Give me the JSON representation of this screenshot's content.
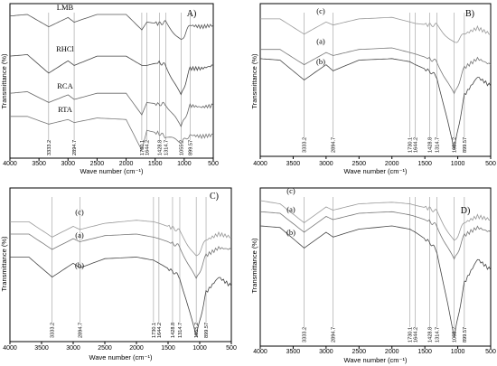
{
  "chart_data": [
    {
      "type": "line",
      "panel_label": "A)",
      "xlabel": "Wave number (cm⁻¹)",
      "ylabel": "Transmittance (%)",
      "xlim": [
        4000,
        500
      ],
      "x_ticks": [
        "4000",
        "3500",
        "3000",
        "2500",
        "2000",
        "1500",
        "1000",
        "500"
      ],
      "peak_labels": [
        "3333.2",
        "2894.7",
        "1730.1",
        "1644.2",
        "1428.8",
        "1314.7",
        "1055.2",
        "899.57"
      ],
      "series": [
        {
          "name": "LMB",
          "color": "#555555",
          "values": [
            [
              4000,
              0.92
            ],
            [
              3700,
              0.93
            ],
            [
              3333,
              0.85
            ],
            [
              3000,
              0.91
            ],
            [
              2894,
              0.88
            ],
            [
              2500,
              0.93
            ],
            [
              2000,
              0.93
            ],
            [
              1730,
              0.83
            ],
            [
              1644,
              0.88
            ],
            [
              1430,
              0.87
            ],
            [
              1315,
              0.88
            ],
            [
              1055,
              0.76
            ],
            [
              900,
              0.86
            ],
            [
              700,
              0.85
            ],
            [
              500,
              0.86
            ]
          ]
        },
        {
          "name": "RHCl",
          "color": "#444444",
          "values": [
            [
              4000,
              0.66
            ],
            [
              3700,
              0.67
            ],
            [
              3333,
              0.55
            ],
            [
              3000,
              0.63
            ],
            [
              2894,
              0.6
            ],
            [
              2500,
              0.66
            ],
            [
              2000,
              0.66
            ],
            [
              1730,
              0.6
            ],
            [
              1644,
              0.6
            ],
            [
              1430,
              0.62
            ],
            [
              1315,
              0.6
            ],
            [
              1055,
              0.4
            ],
            [
              900,
              0.58
            ],
            [
              700,
              0.58
            ],
            [
              500,
              0.6
            ]
          ]
        },
        {
          "name": "RCA",
          "color": "#666666",
          "values": [
            [
              4000,
              0.42
            ],
            [
              3700,
              0.43
            ],
            [
              3333,
              0.36
            ],
            [
              3000,
              0.41
            ],
            [
              2894,
              0.38
            ],
            [
              2500,
              0.42
            ],
            [
              2000,
              0.42
            ],
            [
              1730,
              0.28
            ],
            [
              1644,
              0.36
            ],
            [
              1430,
              0.35
            ],
            [
              1315,
              0.35
            ],
            [
              1055,
              0.2
            ],
            [
              900,
              0.34
            ],
            [
              700,
              0.33
            ],
            [
              500,
              0.34
            ]
          ]
        },
        {
          "name": "RTA",
          "color": "#777777",
          "values": [
            [
              4000,
              0.27
            ],
            [
              3700,
              0.27
            ],
            [
              3333,
              0.22
            ],
            [
              3000,
              0.25
            ],
            [
              2894,
              0.23
            ],
            [
              2500,
              0.26
            ],
            [
              2000,
              0.25
            ],
            [
              1730,
              0.05
            ],
            [
              1644,
              0.18
            ],
            [
              1430,
              0.16
            ],
            [
              1315,
              0.14
            ],
            [
              1055,
              0.1
            ],
            [
              900,
              0.15
            ],
            [
              700,
              0.14
            ],
            [
              500,
              0.15
            ]
          ]
        }
      ]
    },
    {
      "type": "line",
      "panel_label": "B)",
      "xlabel": "Wave number (cm⁻¹)",
      "ylabel": "Transmittance (%)",
      "xlim": [
        4000,
        500
      ],
      "x_ticks": [
        "4000",
        "3500",
        "3000",
        "2500",
        "2000",
        "1500",
        "1000",
        "500"
      ],
      "peak_labels": [
        "3333.2",
        "2894.7",
        "1730.1",
        "1644.2",
        "1428.8",
        "1314.7",
        "1055.2",
        "899.57"
      ],
      "series": [
        {
          "name": "(c)",
          "color": "#999999",
          "values": [
            [
              4000,
              0.9
            ],
            [
              3700,
              0.9
            ],
            [
              3333,
              0.8
            ],
            [
              3000,
              0.88
            ],
            [
              2894,
              0.86
            ],
            [
              2500,
              0.9
            ],
            [
              2000,
              0.91
            ],
            [
              1730,
              0.88
            ],
            [
              1644,
              0.87
            ],
            [
              1430,
              0.86
            ],
            [
              1315,
              0.86
            ],
            [
              1055,
              0.74
            ],
            [
              900,
              0.8
            ],
            [
              700,
              0.84
            ],
            [
              500,
              0.8
            ]
          ]
        },
        {
          "name": "(a)",
          "color": "#777777",
          "values": [
            [
              4000,
              0.7
            ],
            [
              3700,
              0.7
            ],
            [
              3333,
              0.6
            ],
            [
              3000,
              0.68
            ],
            [
              2894,
              0.66
            ],
            [
              2500,
              0.7
            ],
            [
              2000,
              0.71
            ],
            [
              1730,
              0.68
            ],
            [
              1644,
              0.67
            ],
            [
              1430,
              0.64
            ],
            [
              1315,
              0.62
            ],
            [
              1055,
              0.4
            ],
            [
              900,
              0.58
            ],
            [
              700,
              0.64
            ],
            [
              500,
              0.6
            ]
          ]
        },
        {
          "name": "(b)",
          "color": "#444444",
          "values": [
            [
              4000,
              0.64
            ],
            [
              3700,
              0.63
            ],
            [
              3333,
              0.5
            ],
            [
              3000,
              0.6
            ],
            [
              2894,
              0.56
            ],
            [
              2500,
              0.63
            ],
            [
              2000,
              0.64
            ],
            [
              1730,
              0.62
            ],
            [
              1644,
              0.6
            ],
            [
              1430,
              0.56
            ],
            [
              1315,
              0.52
            ],
            [
              1055,
              0.04
            ],
            [
              900,
              0.4
            ],
            [
              700,
              0.52
            ],
            [
              500,
              0.46
            ]
          ]
        }
      ]
    },
    {
      "type": "line",
      "panel_label": "C)",
      "xlabel": "Wave number (cm⁻¹)",
      "ylabel": "Transmittance (%)",
      "xlim": [
        4000,
        500
      ],
      "x_ticks": [
        "4000",
        "3500",
        "3000",
        "2500",
        "2000",
        "1500",
        "1000",
        "500"
      ],
      "peak_labels": [
        "3333.2",
        "2894.7",
        "1730.1",
        "1644.2",
        "1428.8",
        "1314.7",
        "1055.2",
        "899.57"
      ],
      "series": [
        {
          "name": "(c)",
          "color": "#999999",
          "values": [
            [
              4000,
              0.78
            ],
            [
              3700,
              0.78
            ],
            [
              3333,
              0.68
            ],
            [
              3000,
              0.75
            ],
            [
              2894,
              0.73
            ],
            [
              2500,
              0.77
            ],
            [
              2000,
              0.79
            ],
            [
              1730,
              0.78
            ],
            [
              1644,
              0.77
            ],
            [
              1430,
              0.74
            ],
            [
              1315,
              0.72
            ],
            [
              1055,
              0.55
            ],
            [
              900,
              0.66
            ],
            [
              700,
              0.7
            ],
            [
              500,
              0.68
            ]
          ]
        },
        {
          "name": "(a)",
          "color": "#777777",
          "values": [
            [
              4000,
              0.7
            ],
            [
              3700,
              0.7
            ],
            [
              3333,
              0.6
            ],
            [
              3000,
              0.67
            ],
            [
              2894,
              0.65
            ],
            [
              2500,
              0.69
            ],
            [
              2000,
              0.7
            ],
            [
              1730,
              0.68
            ],
            [
              1644,
              0.67
            ],
            [
              1430,
              0.64
            ],
            [
              1315,
              0.62
            ],
            [
              1055,
              0.4
            ],
            [
              900,
              0.56
            ],
            [
              700,
              0.61
            ],
            [
              500,
              0.6
            ]
          ]
        },
        {
          "name": "(b)",
          "color": "#444444",
          "values": [
            [
              4000,
              0.55
            ],
            [
              3700,
              0.55
            ],
            [
              3333,
              0.42
            ],
            [
              3000,
              0.51
            ],
            [
              2894,
              0.48
            ],
            [
              2500,
              0.54
            ],
            [
              2000,
              0.55
            ],
            [
              1730,
              0.53
            ],
            [
              1644,
              0.51
            ],
            [
              1430,
              0.46
            ],
            [
              1315,
              0.42
            ],
            [
              1055,
              0.03
            ],
            [
              900,
              0.32
            ],
            [
              700,
              0.42
            ],
            [
              500,
              0.36
            ]
          ]
        }
      ]
    },
    {
      "type": "line",
      "panel_label": "D)",
      "xlabel": "Wave number (cm⁻¹)",
      "ylabel": "Transmittance (%)",
      "xlim": [
        4000,
        500
      ],
      "x_ticks": [
        "4000",
        "3500",
        "3000",
        "2500",
        "2000",
        "1500",
        "1000",
        "500"
      ],
      "peak_labels": [
        "3333.2",
        "2894.7",
        "1730.1",
        "1644.2",
        "1428.8",
        "1314.7",
        "1055.2",
        "899.57"
      ],
      "series": [
        {
          "name": "(c)",
          "color": "#999999",
          "values": [
            [
              4000,
              0.92
            ],
            [
              3700,
              0.9
            ],
            [
              3333,
              0.78
            ],
            [
              3000,
              0.88
            ],
            [
              2894,
              0.86
            ],
            [
              2500,
              0.9
            ],
            [
              2000,
              0.91
            ],
            [
              1730,
              0.9
            ],
            [
              1644,
              0.89
            ],
            [
              1430,
              0.87
            ],
            [
              1315,
              0.85
            ],
            [
              1055,
              0.66
            ],
            [
              900,
              0.78
            ],
            [
              700,
              0.82
            ],
            [
              500,
              0.8
            ]
          ]
        },
        {
          "name": "(a)",
          "color": "#777777",
          "values": [
            [
              4000,
              0.85
            ],
            [
              3700,
              0.84
            ],
            [
              3333,
              0.72
            ],
            [
              3000,
              0.82
            ],
            [
              2894,
              0.8
            ],
            [
              2500,
              0.84
            ],
            [
              2000,
              0.85
            ],
            [
              1730,
              0.83
            ],
            [
              1644,
              0.82
            ],
            [
              1430,
              0.79
            ],
            [
              1315,
              0.76
            ],
            [
              1055,
              0.54
            ],
            [
              900,
              0.7
            ],
            [
              700,
              0.75
            ],
            [
              500,
              0.72
            ]
          ]
        },
        {
          "name": "(b)",
          "color": "#444444",
          "values": [
            [
              4000,
              0.76
            ],
            [
              3700,
              0.75
            ],
            [
              3333,
              0.62
            ],
            [
              3000,
              0.72
            ],
            [
              2894,
              0.69
            ],
            [
              2500,
              0.74
            ],
            [
              2000,
              0.76
            ],
            [
              1730,
              0.74
            ],
            [
              1644,
              0.72
            ],
            [
              1430,
              0.66
            ],
            [
              1315,
              0.6
            ],
            [
              1055,
              0.05
            ],
            [
              900,
              0.4
            ],
            [
              700,
              0.55
            ],
            [
              500,
              0.48
            ]
          ]
        }
      ]
    }
  ]
}
